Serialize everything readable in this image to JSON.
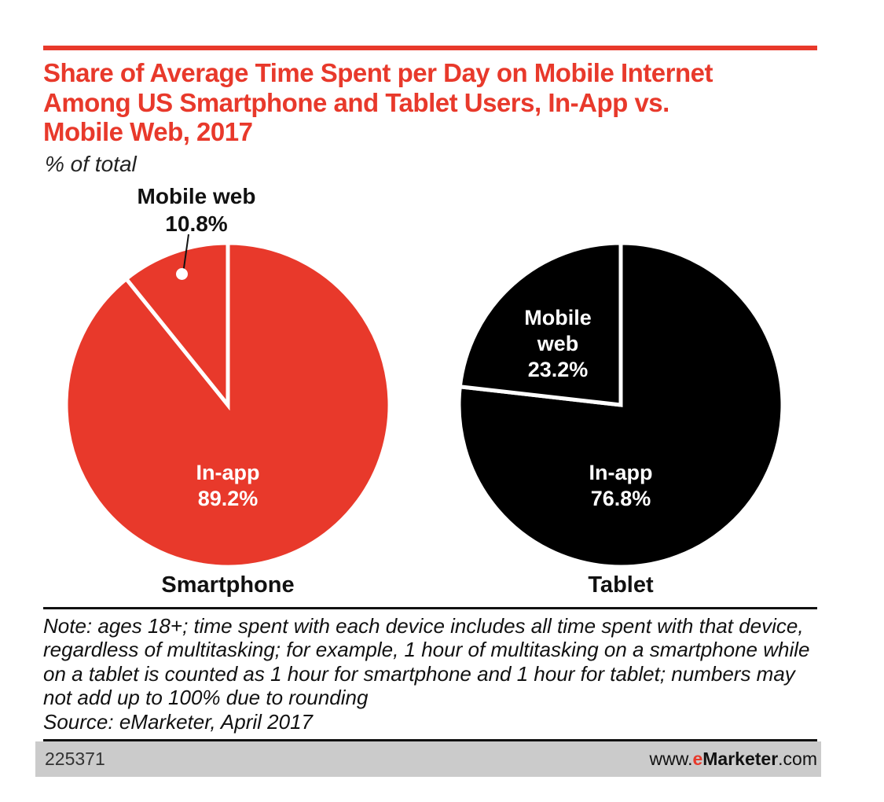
{
  "title": "Share of Average Time Spent per Day on Mobile Internet Among US Smartphone and Tablet Users, In-App vs. Mobile Web, 2017",
  "subtitle": "% of total",
  "chart_data": {
    "type": "pie",
    "title": "Share of Average Time Spent per Day on Mobile Internet Among US Smartphone and Tablet Users, In-App vs. Mobile Web, 2017",
    "unit": "% of total",
    "legend_position": "none",
    "charts": [
      {
        "name": "Smartphone",
        "color": "#e8392b",
        "label_color": "#ffffff",
        "slices": [
          {
            "label": "In-app",
            "value": 89.2
          },
          {
            "label": "Mobile web",
            "value": 10.8
          }
        ]
      },
      {
        "name": "Tablet",
        "color": "#000000",
        "label_color": "#ffffff",
        "slices": [
          {
            "label": "In-app",
            "value": 76.8
          },
          {
            "label": "Mobile web",
            "value": 23.2
          }
        ]
      }
    ]
  },
  "display": {
    "smartphone": {
      "callout_label": "Mobile web",
      "callout_value": "10.8%",
      "inapp_label": "In-app",
      "inapp_value": "89.2%",
      "caption": "Smartphone"
    },
    "tablet": {
      "web_label_line1": "Mobile",
      "web_label_line2": "web",
      "web_value": "23.2%",
      "inapp_label": "In-app",
      "inapp_value": "76.8%",
      "caption": "Tablet"
    }
  },
  "note": "Note: ages 18+; time spent with each device includes all time spent with that device, regardless of multitasking; for example, 1 hour of multitasking on a smartphone while on a tablet is counted as 1 hour for smartphone and 1 hour for tablet; numbers may not add up to 100% due to rounding",
  "source": "Source: eMarketer, April 2017",
  "footer": {
    "chart_id": "225371",
    "site_prefix": "www.",
    "site_e": "e",
    "site_name": "Marketer",
    "site_suffix": ".com"
  },
  "colors": {
    "accent_red": "#e8392b",
    "pie_black": "#000000",
    "footer_bg": "#cbcbcb",
    "text_black": "#111111"
  }
}
